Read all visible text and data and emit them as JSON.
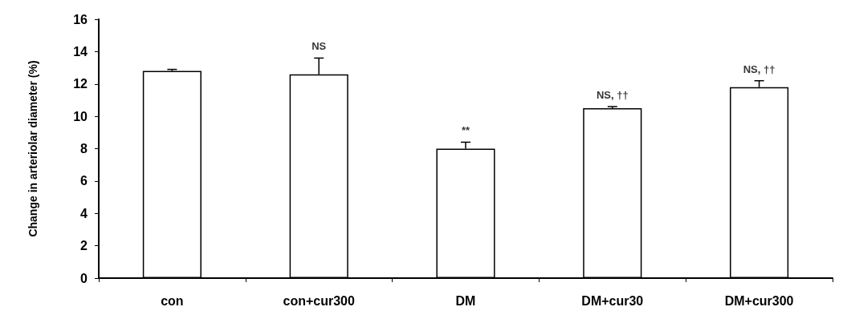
{
  "chart_data": {
    "type": "bar",
    "ylabel": "Change in arteriolar diameter (%)",
    "categories": [
      "con",
      "con+cur300",
      "DM",
      "DM+cur30",
      "DM+cur300"
    ],
    "values": [
      12.8,
      12.6,
      8.0,
      10.5,
      11.8
    ],
    "errors": [
      0.1,
      1.0,
      0.4,
      0.1,
      0.4
    ],
    "color": "#ffffff",
    "ylim": [
      0,
      16
    ],
    "yticks": [
      0,
      2,
      4,
      6,
      8,
      10,
      12,
      14,
      16
    ],
    "grid": false,
    "annotations": [
      {
        "text": "NS",
        "x": "con+cur300",
        "y": 13.6
      },
      {
        "text": "**",
        "x": "DM",
        "y": 8.4
      },
      {
        "text": "NS, ††",
        "x": "DM+cur30",
        "y": 10.6
      },
      {
        "text": "NS, ††",
        "x": "DM+cur300",
        "y": 12.2
      }
    ]
  }
}
